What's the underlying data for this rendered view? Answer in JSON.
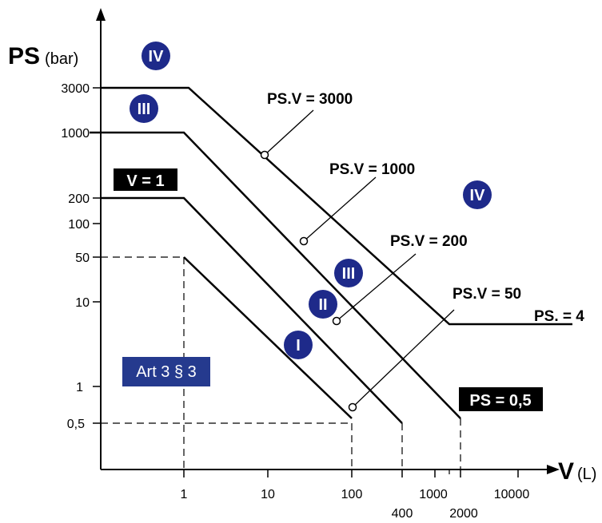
{
  "axes": {
    "y_title": "PS",
    "y_unit": "(bar)",
    "x_title": "V",
    "x_unit": "(L)",
    "y_ticks": [
      "3000",
      "1000",
      "200",
      "100",
      "50",
      "10",
      "1",
      "0,5"
    ],
    "x_ticks": [
      "1",
      "10",
      "100",
      "400",
      "1000",
      "2000",
      "10000"
    ]
  },
  "curves": {
    "ps_v_3000": "PS.V = 3000",
    "ps_v_1000": "PS.V = 1000",
    "ps_v_200": "PS.V = 200",
    "ps_v_50": "PS.V = 50",
    "ps_4": "PS. = 4"
  },
  "boxes": {
    "v_eq_1": "V = 1",
    "ps_eq_05": "PS = 0,5",
    "art": "Art 3 § 3"
  },
  "categories": {
    "iv_top": "IV",
    "iii_left": "III",
    "iv_right": "IV",
    "iii_mid": "III",
    "ii": "II",
    "i": "I"
  },
  "colors": {
    "badge": "#1e2a8a",
    "box_black": "#000000",
    "art_box": "#253a8e"
  }
}
